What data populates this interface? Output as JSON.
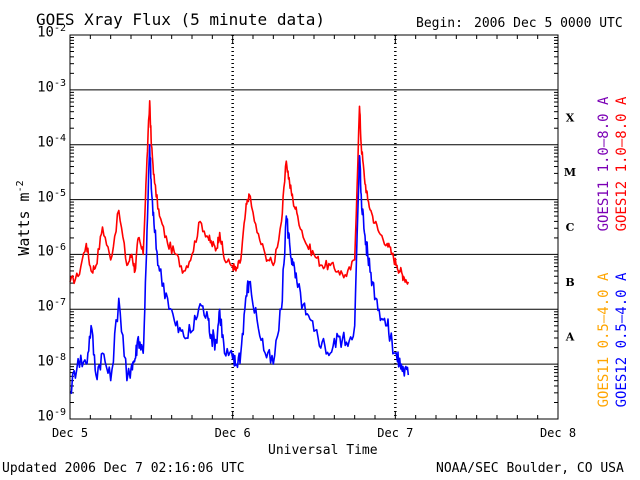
{
  "header": {
    "title": "GOES Xray Flux (5 minute data)",
    "begin_label": "Begin:",
    "begin_value": "2006 Dec 5 0000 UTC"
  },
  "footer": {
    "updated": "Updated 2006 Dec  7 02:16:06 UTC",
    "credit": "NOAA/SEC Boulder, CO USA"
  },
  "colors": {
    "goes12_long": "#ff0000",
    "goes11_long": "#7b00b5",
    "goes11_short": "#ffa500",
    "goes12_short": "#0000ff",
    "grid": "#000000"
  },
  "chart_data": {
    "type": "line",
    "title": "GOES Xray Flux (5 minute data)",
    "xlabel": "Universal Time",
    "ylabel": "Watts m-2",
    "ylabel_base": "Watts m",
    "ylabel_exp": "-2",
    "yscale": "log",
    "ylim": [
      1e-09,
      0.01
    ],
    "xlim_days": [
      0,
      3
    ],
    "x_ticks": [
      {
        "day": 0,
        "label": "Dec 5"
      },
      {
        "day": 1,
        "label": "Dec 6"
      },
      {
        "day": 2,
        "label": "Dec 7"
      },
      {
        "day": 3,
        "label": "Dec 8"
      }
    ],
    "y_ticks": [
      {
        "exp": -2,
        "base": "10",
        "sup": "-2"
      },
      {
        "exp": -3,
        "base": "10",
        "sup": "-3"
      },
      {
        "exp": -4,
        "base": "10",
        "sup": "-4"
      },
      {
        "exp": -5,
        "base": "10",
        "sup": "-5"
      },
      {
        "exp": -6,
        "base": "10",
        "sup": "-6"
      },
      {
        "exp": -7,
        "base": "10",
        "sup": "-7"
      },
      {
        "exp": -8,
        "base": "10",
        "sup": "-8"
      },
      {
        "exp": -9,
        "base": "10",
        "sup": "-9"
      }
    ],
    "flare_classes": [
      {
        "label": "X",
        "exp": -3.5
      },
      {
        "label": "M",
        "exp": -4.5
      },
      {
        "label": "C",
        "exp": -5.5
      },
      {
        "label": "B",
        "exp": -6.5
      },
      {
        "label": "A",
        "exp": -7.5
      }
    ],
    "legend": {
      "placement": "right",
      "upper": [
        {
          "name": "GOES11 1.0–8.0 A",
          "color": "#7b00b5"
        },
        {
          "name": "GOES12 1.0–8.0 A",
          "color": "#ff0000"
        }
      ],
      "lower": [
        {
          "name": "GOES11 0.5–4.0 A",
          "color": "#ffa500"
        },
        {
          "name": "GOES12 0.5–4.0 A",
          "color": "#0000ff"
        }
      ]
    },
    "series": [
      {
        "name": "GOES12 1.0-8.0 A",
        "color": "#ff0000",
        "x_days": [
          0.0,
          0.05,
          0.1,
          0.13,
          0.16,
          0.2,
          0.25,
          0.3,
          0.35,
          0.38,
          0.4,
          0.42,
          0.45,
          0.47,
          0.49,
          0.5,
          0.52,
          0.55,
          0.6,
          0.65,
          0.7,
          0.75,
          0.8,
          0.85,
          0.87,
          0.9,
          0.92,
          0.95,
          1.0,
          1.02,
          1.05,
          1.08,
          1.1,
          1.15,
          1.2,
          1.25,
          1.3,
          1.33,
          1.35,
          1.37,
          1.4,
          1.45,
          1.5,
          1.55,
          1.6,
          1.65,
          1.7,
          1.75,
          1.78,
          1.79,
          1.81,
          1.83,
          1.86,
          1.9,
          1.95,
          1.98,
          2.01,
          2.03,
          2.05,
          2.08
        ],
        "y_exp": [
          -6.5,
          -6.4,
          -5.8,
          -6.3,
          -6.2,
          -5.5,
          -6.1,
          -5.2,
          -6.2,
          -6.0,
          -6.3,
          -5.7,
          -6.0,
          -4.5,
          -3.2,
          -4.0,
          -4.7,
          -5.3,
          -5.8,
          -6.0,
          -6.3,
          -6.0,
          -5.4,
          -5.7,
          -5.8,
          -5.9,
          -5.6,
          -6.1,
          -6.2,
          -6.3,
          -6.1,
          -5.2,
          -4.9,
          -5.6,
          -6.0,
          -6.2,
          -5.4,
          -4.3,
          -4.7,
          -5.0,
          -5.3,
          -5.8,
          -6.0,
          -6.2,
          -6.2,
          -6.3,
          -6.4,
          -6.1,
          -3.3,
          -4.0,
          -4.6,
          -5.0,
          -5.3,
          -5.6,
          -5.8,
          -6.0,
          -6.2,
          -6.3,
          -6.4,
          -6.5
        ]
      },
      {
        "name": "GOES12 0.5-4.0 A",
        "color": "#0000ff",
        "x_days": [
          0.0,
          0.05,
          0.1,
          0.13,
          0.16,
          0.2,
          0.25,
          0.3,
          0.35,
          0.38,
          0.4,
          0.42,
          0.45,
          0.47,
          0.49,
          0.5,
          0.52,
          0.55,
          0.6,
          0.65,
          0.7,
          0.75,
          0.8,
          0.85,
          0.87,
          0.9,
          0.92,
          0.95,
          1.0,
          1.02,
          1.05,
          1.08,
          1.1,
          1.15,
          1.2,
          1.25,
          1.3,
          1.33,
          1.35,
          1.37,
          1.4,
          1.45,
          1.5,
          1.55,
          1.6,
          1.65,
          1.7,
          1.75,
          1.78,
          1.79,
          1.81,
          1.83,
          1.86,
          1.9,
          1.95,
          1.98,
          2.01,
          2.03,
          2.05,
          2.08
        ],
        "y_exp": [
          -8.5,
          -7.9,
          -8.0,
          -7.3,
          -8.2,
          -7.8,
          -8.3,
          -6.8,
          -8.3,
          -8.0,
          -7.9,
          -7.5,
          -7.8,
          -6.0,
          -4.0,
          -4.8,
          -5.6,
          -6.3,
          -6.8,
          -7.3,
          -7.5,
          -7.4,
          -6.9,
          -7.2,
          -7.5,
          -7.6,
          -7.0,
          -7.8,
          -7.9,
          -8.0,
          -7.8,
          -6.8,
          -6.5,
          -7.2,
          -7.8,
          -8.0,
          -7.0,
          -5.3,
          -5.8,
          -6.2,
          -6.6,
          -7.1,
          -7.4,
          -7.6,
          -7.8,
          -7.5,
          -7.6,
          -7.3,
          -4.2,
          -4.9,
          -5.6,
          -6.0,
          -6.5,
          -7.0,
          -7.3,
          -7.6,
          -7.9,
          -8.0,
          -8.1,
          -8.2
        ]
      }
    ]
  }
}
